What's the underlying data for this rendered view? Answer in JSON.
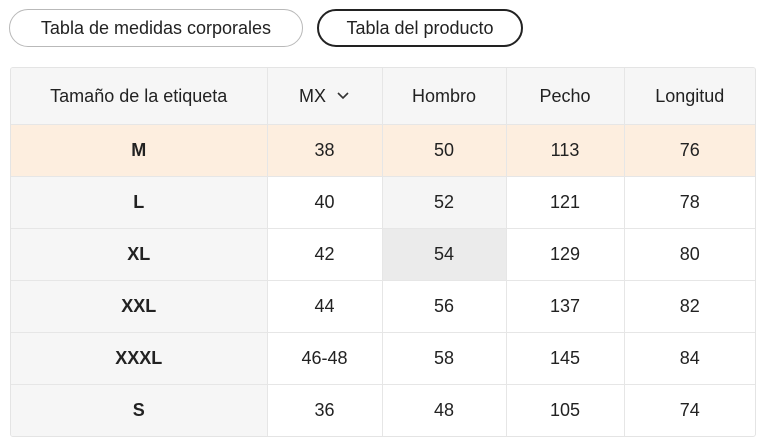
{
  "tabs": [
    "Tabla de medidas corporales",
    "Tabla del producto"
  ],
  "table": {
    "header": [
      "Tamaño de la etiqueta",
      "MX",
      "Hombro",
      "Pecho",
      "Longitud"
    ],
    "rows": [
      [
        "M",
        38,
        50,
        113,
        76
      ],
      [
        "L",
        40,
        52,
        121,
        78
      ],
      [
        "XL",
        42,
        54,
        129,
        80
      ],
      [
        "XXL",
        44,
        56,
        137,
        82
      ],
      [
        "XXXL",
        "46-48",
        58,
        145,
        84
      ],
      [
        "S",
        36,
        48,
        105,
        74
      ]
    ]
  }
}
